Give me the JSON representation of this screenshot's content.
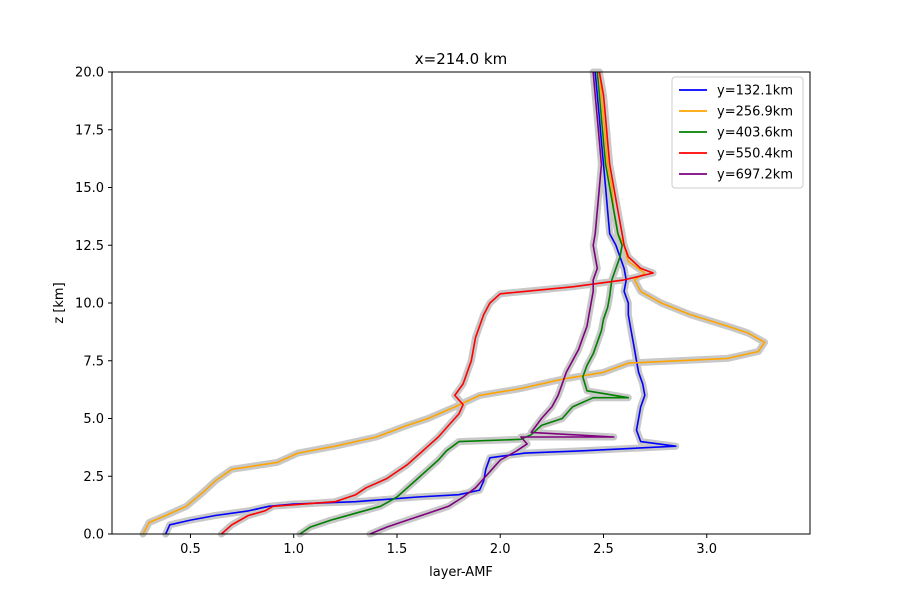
{
  "chart_data": {
    "type": "line",
    "title": "x=214.0 km",
    "xlabel": "layer-AMF",
    "ylabel": "z [km]",
    "xlim": [
      0.12,
      3.5
    ],
    "ylim": [
      0,
      20
    ],
    "xticks": [
      "0.5",
      "1.0",
      "1.5",
      "2.0",
      "2.5",
      "3.0"
    ],
    "yticks": [
      "0.0",
      "2.5",
      "5.0",
      "7.5",
      "10.0",
      "12.5",
      "15.0",
      "17.5",
      "20.0"
    ],
    "grid": false,
    "legend_position": "top-right",
    "uncertainty_band_color": "#c8c8c8",
    "series": [
      {
        "name": "y=132.1km",
        "color": "#0000ff",
        "points": [
          [
            0.38,
            0
          ],
          [
            0.4,
            0.4
          ],
          [
            0.5,
            0.6
          ],
          [
            0.62,
            0.8
          ],
          [
            0.78,
            1.0
          ],
          [
            0.88,
            1.2
          ],
          [
            1.0,
            1.3
          ],
          [
            1.3,
            1.4
          ],
          [
            1.6,
            1.6
          ],
          [
            1.8,
            1.7
          ],
          [
            1.9,
            1.9
          ],
          [
            1.92,
            2.3
          ],
          [
            1.93,
            2.8
          ],
          [
            1.95,
            3.3
          ],
          [
            2.12,
            3.5
          ],
          [
            2.4,
            3.6
          ],
          [
            2.85,
            3.8
          ],
          [
            2.68,
            4.0
          ],
          [
            2.66,
            4.5
          ],
          [
            2.67,
            5.0
          ],
          [
            2.68,
            5.5
          ],
          [
            2.7,
            6.0
          ],
          [
            2.69,
            6.5
          ],
          [
            2.67,
            7.0
          ],
          [
            2.66,
            7.5
          ],
          [
            2.65,
            8.0
          ],
          [
            2.64,
            8.5
          ],
          [
            2.63,
            9.0
          ],
          [
            2.62,
            9.5
          ],
          [
            2.62,
            10.0
          ],
          [
            2.6,
            10.5
          ],
          [
            2.61,
            11.0
          ],
          [
            2.6,
            11.5
          ],
          [
            2.58,
            12.0
          ],
          [
            2.56,
            12.5
          ],
          [
            2.53,
            13.0
          ],
          [
            2.52,
            14.0
          ],
          [
            2.51,
            15.0
          ],
          [
            2.5,
            16.0
          ],
          [
            2.49,
            17.0
          ],
          [
            2.48,
            18.0
          ],
          [
            2.47,
            19.0
          ],
          [
            2.46,
            20.0
          ]
        ]
      },
      {
        "name": "y=256.9km",
        "color": "#ffa500",
        "points": [
          [
            0.27,
            0
          ],
          [
            0.3,
            0.5
          ],
          [
            0.38,
            0.8
          ],
          [
            0.48,
            1.2
          ],
          [
            0.56,
            1.8
          ],
          [
            0.62,
            2.3
          ],
          [
            0.7,
            2.8
          ],
          [
            0.92,
            3.1
          ],
          [
            1.02,
            3.5
          ],
          [
            1.2,
            3.8
          ],
          [
            1.4,
            4.2
          ],
          [
            1.55,
            4.7
          ],
          [
            1.65,
            5.0
          ],
          [
            1.78,
            5.5
          ],
          [
            1.9,
            6.0
          ],
          [
            2.1,
            6.3
          ],
          [
            2.3,
            6.7
          ],
          [
            2.5,
            7.0
          ],
          [
            2.62,
            7.4
          ],
          [
            3.1,
            7.6
          ],
          [
            3.25,
            7.9
          ],
          [
            3.28,
            8.3
          ],
          [
            3.2,
            8.7
          ],
          [
            3.1,
            9.0
          ],
          [
            2.92,
            9.5
          ],
          [
            2.78,
            10.0
          ],
          [
            2.68,
            10.5
          ],
          [
            2.65,
            11.0
          ],
          [
            2.7,
            11.3
          ],
          [
            2.62,
            11.8
          ],
          [
            2.6,
            12.5
          ],
          [
            2.57,
            13.0
          ],
          [
            2.55,
            14.0
          ],
          [
            2.54,
            15.0
          ],
          [
            2.52,
            16.0
          ],
          [
            2.51,
            17.0
          ],
          [
            2.5,
            18.0
          ],
          [
            2.49,
            19.0
          ],
          [
            2.48,
            20.0
          ]
        ]
      },
      {
        "name": "y=403.6km",
        "color": "#008000",
        "points": [
          [
            1.03,
            0
          ],
          [
            1.08,
            0.3
          ],
          [
            1.18,
            0.6
          ],
          [
            1.3,
            0.9
          ],
          [
            1.42,
            1.2
          ],
          [
            1.5,
            1.6
          ],
          [
            1.55,
            2.0
          ],
          [
            1.6,
            2.4
          ],
          [
            1.65,
            2.8
          ],
          [
            1.7,
            3.2
          ],
          [
            1.74,
            3.6
          ],
          [
            1.8,
            4.0
          ],
          [
            2.1,
            4.1
          ],
          [
            2.15,
            4.3
          ],
          [
            2.2,
            4.7
          ],
          [
            2.3,
            5.0
          ],
          [
            2.35,
            5.5
          ],
          [
            2.45,
            5.9
          ],
          [
            2.62,
            5.9
          ],
          [
            2.42,
            6.2
          ],
          [
            2.4,
            6.8
          ],
          [
            2.42,
            7.3
          ],
          [
            2.45,
            7.8
          ],
          [
            2.47,
            8.3
          ],
          [
            2.49,
            8.8
          ],
          [
            2.5,
            9.3
          ],
          [
            2.52,
            9.8
          ],
          [
            2.53,
            10.3
          ],
          [
            2.54,
            11.0
          ],
          [
            2.56,
            11.5
          ],
          [
            2.58,
            12.0
          ],
          [
            2.59,
            12.5
          ],
          [
            2.57,
            13.0
          ],
          [
            2.55,
            14.0
          ],
          [
            2.53,
            15.0
          ],
          [
            2.51,
            16.0
          ],
          [
            2.5,
            17.0
          ],
          [
            2.49,
            18.0
          ],
          [
            2.48,
            19.0
          ],
          [
            2.47,
            20.0
          ]
        ]
      },
      {
        "name": "y=550.4km",
        "color": "#ff0000",
        "points": [
          [
            0.65,
            0
          ],
          [
            0.7,
            0.4
          ],
          [
            0.78,
            0.8
          ],
          [
            0.86,
            1.0
          ],
          [
            0.9,
            1.2
          ],
          [
            1.2,
            1.4
          ],
          [
            1.3,
            1.7
          ],
          [
            1.35,
            2.0
          ],
          [
            1.45,
            2.4
          ],
          [
            1.5,
            2.7
          ],
          [
            1.55,
            3.0
          ],
          [
            1.6,
            3.4
          ],
          [
            1.65,
            3.8
          ],
          [
            1.7,
            4.2
          ],
          [
            1.75,
            4.7
          ],
          [
            1.8,
            5.2
          ],
          [
            1.82,
            5.6
          ],
          [
            1.78,
            6.0
          ],
          [
            1.82,
            6.5
          ],
          [
            1.84,
            7.0
          ],
          [
            1.86,
            7.5
          ],
          [
            1.87,
            8.0
          ],
          [
            1.88,
            8.5
          ],
          [
            1.9,
            9.0
          ],
          [
            1.92,
            9.5
          ],
          [
            1.95,
            10.0
          ],
          [
            2.0,
            10.4
          ],
          [
            2.35,
            10.7
          ],
          [
            2.6,
            11.0
          ],
          [
            2.74,
            11.3
          ],
          [
            2.68,
            11.5
          ],
          [
            2.62,
            12.0
          ],
          [
            2.6,
            12.5
          ],
          [
            2.59,
            13.0
          ],
          [
            2.57,
            14.0
          ],
          [
            2.55,
            15.0
          ],
          [
            2.53,
            16.0
          ],
          [
            2.52,
            17.0
          ],
          [
            2.51,
            18.0
          ],
          [
            2.5,
            19.0
          ],
          [
            2.48,
            20.0
          ]
        ]
      },
      {
        "name": "y=697.2km",
        "color": "#800080",
        "points": [
          [
            1.37,
            0
          ],
          [
            1.45,
            0.3
          ],
          [
            1.55,
            0.6
          ],
          [
            1.65,
            0.9
          ],
          [
            1.75,
            1.2
          ],
          [
            1.82,
            1.6
          ],
          [
            1.88,
            2.0
          ],
          [
            1.92,
            2.4
          ],
          [
            1.96,
            2.8
          ],
          [
            2.0,
            3.2
          ],
          [
            2.08,
            3.6
          ],
          [
            2.13,
            3.9
          ],
          [
            2.1,
            4.2
          ],
          [
            2.55,
            4.2
          ],
          [
            2.15,
            4.4
          ],
          [
            2.2,
            5.0
          ],
          [
            2.25,
            5.5
          ],
          [
            2.28,
            6.0
          ],
          [
            2.3,
            6.5
          ],
          [
            2.32,
            7.0
          ],
          [
            2.35,
            7.5
          ],
          [
            2.38,
            8.0
          ],
          [
            2.4,
            8.5
          ],
          [
            2.42,
            9.0
          ],
          [
            2.43,
            9.5
          ],
          [
            2.44,
            10.0
          ],
          [
            2.45,
            10.5
          ],
          [
            2.45,
            11.0
          ],
          [
            2.47,
            11.5
          ],
          [
            2.46,
            12.0
          ],
          [
            2.45,
            12.5
          ],
          [
            2.46,
            13.0
          ],
          [
            2.47,
            14.0
          ],
          [
            2.48,
            15.0
          ],
          [
            2.49,
            16.0
          ],
          [
            2.48,
            17.0
          ],
          [
            2.47,
            18.0
          ],
          [
            2.46,
            19.0
          ],
          [
            2.45,
            20.0
          ]
        ]
      }
    ]
  }
}
